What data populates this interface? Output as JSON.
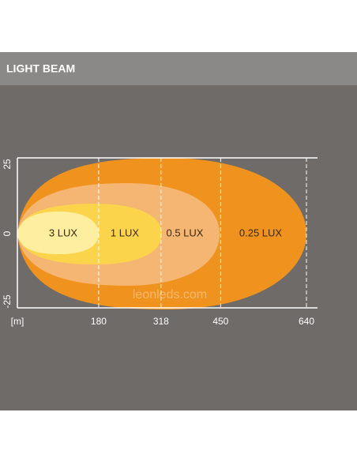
{
  "header": {
    "title": "LIGHT BEAM"
  },
  "zones": [
    {
      "label": "0.25 LUX"
    },
    {
      "label": "0.5 LUX"
    },
    {
      "label": "1 LUX"
    },
    {
      "label": "3 LUX"
    }
  ],
  "x_axis": {
    "unit": "[m]",
    "ticks": [
      180,
      318,
      450,
      640
    ]
  },
  "y_axis": {
    "labels": [
      "25",
      "0",
      "-25"
    ]
  },
  "watermark": "leonleds.com"
}
